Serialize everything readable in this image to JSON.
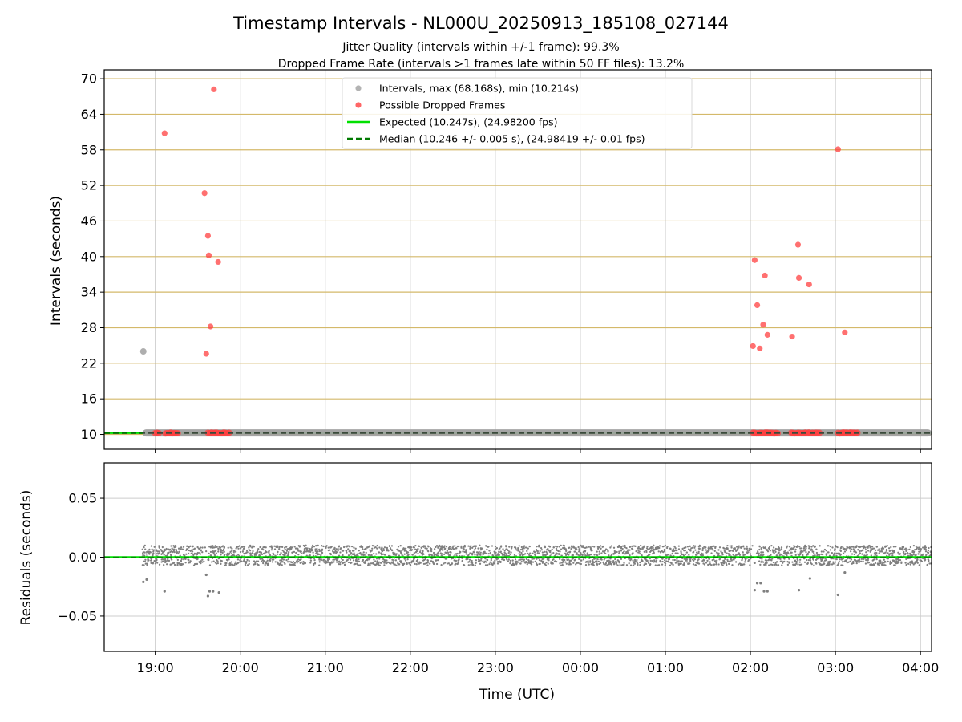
{
  "chart_data": {
    "type": "scatter",
    "title": "Timestamp Intervals - NL000U_20250913_185108_027144",
    "subtitles": [
      "Jitter Quality (intervals within +/-1 frame): 99.3%",
      "Dropped Frame Rate (intervals >1 frames late within 50 FF files): 13.2%"
    ],
    "xlabel": "Time (UTC)",
    "x_tick_labels": [
      "19:00",
      "20:00",
      "21:00",
      "22:00",
      "23:00",
      "00:00",
      "01:00",
      "02:00",
      "03:00",
      "04:00"
    ],
    "x_ticks": [
      19.0,
      20.0,
      21.0,
      22.0,
      23.0,
      24.0,
      25.0,
      26.0,
      27.0,
      28.0
    ],
    "xlim": [
      18.4,
      28.13
    ],
    "legend_position": "upper-center",
    "colors": {
      "intervals": "#a0a0a0",
      "dropped": "#ff4040",
      "expected": "#00e000",
      "median": "#007a00",
      "residuals": "#7f7f7f",
      "hgrid_top": "#d4b96a",
      "grid": "#cccccc"
    },
    "top": {
      "ylabel": "Intervals (seconds)",
      "ylim": [
        7.5,
        71.5
      ],
      "y_ticks": [
        10,
        16,
        22,
        28,
        34,
        40,
        46,
        52,
        58,
        64,
        70
      ],
      "legend": [
        {
          "label": "Intervals, max (68.168s), min (10.214s)",
          "kind": "dot",
          "color": "#a0a0a0"
        },
        {
          "label": "Possible Dropped Frames",
          "kind": "dot",
          "color": "#ff4040"
        },
        {
          "label": "Expected (10.247s), (24.98200 fps)",
          "kind": "line",
          "color": "#00e000"
        },
        {
          "label": "Median (10.246 +/- 0.005 s), (24.98419 +/- 0.01 fps)",
          "kind": "dash",
          "color": "#007a00"
        }
      ],
      "expected_value": 10.247,
      "median_value": 10.246,
      "intervals_outliers": [
        {
          "x": 18.86,
          "y": 24.0
        }
      ],
      "dropped_frames": [
        {
          "x": 19.11,
          "y": 60.8
        },
        {
          "x": 19.69,
          "y": 68.2
        },
        {
          "x": 19.58,
          "y": 50.7
        },
        {
          "x": 19.62,
          "y": 43.5
        },
        {
          "x": 19.63,
          "y": 40.2
        },
        {
          "x": 19.74,
          "y": 39.1
        },
        {
          "x": 19.65,
          "y": 28.2
        },
        {
          "x": 19.6,
          "y": 23.6
        },
        {
          "x": 27.03,
          "y": 58.1
        },
        {
          "x": 26.56,
          "y": 42.0
        },
        {
          "x": 26.05,
          "y": 39.4
        },
        {
          "x": 26.17,
          "y": 36.8
        },
        {
          "x": 26.57,
          "y": 36.4
        },
        {
          "x": 26.69,
          "y": 35.3
        },
        {
          "x": 26.08,
          "y": 31.8
        },
        {
          "x": 26.15,
          "y": 28.5
        },
        {
          "x": 26.2,
          "y": 26.8
        },
        {
          "x": 26.49,
          "y": 26.5
        },
        {
          "x": 27.11,
          "y": 27.2
        },
        {
          "x": 26.03,
          "y": 24.9
        },
        {
          "x": 26.11,
          "y": 24.5
        }
      ],
      "baseline_span": [
        18.85,
        28.13
      ],
      "baseline_value": 10.25,
      "dropped_baseline_ranges": [
        [
          19.0,
          19.05
        ],
        [
          19.12,
          19.27
        ],
        [
          19.62,
          19.88
        ],
        [
          26.03,
          26.33
        ],
        [
          26.48,
          26.82
        ],
        [
          27.03,
          27.27
        ]
      ]
    },
    "bottom": {
      "ylabel": "Residuals (seconds)",
      "ylim": [
        -0.08,
        0.08
      ],
      "y_ticks": [
        0.05,
        0.0,
        -0.05
      ],
      "y_tick_labels": [
        "0.05",
        "0.00",
        "−0.05"
      ],
      "band_range": [
        -0.007,
        0.01
      ],
      "band_span": [
        18.85,
        28.13
      ],
      "gaps": [
        [
          19.55,
          19.62
        ],
        [
          26.0,
          26.08
        ]
      ],
      "outliers": [
        {
          "x": 18.86,
          "y": -0.021
        },
        {
          "x": 18.9,
          "y": -0.019
        },
        {
          "x": 19.11,
          "y": -0.029
        },
        {
          "x": 19.6,
          "y": -0.015
        },
        {
          "x": 19.62,
          "y": -0.033
        },
        {
          "x": 19.64,
          "y": -0.029
        },
        {
          "x": 19.68,
          "y": -0.029
        },
        {
          "x": 19.75,
          "y": -0.03
        },
        {
          "x": 26.05,
          "y": -0.028
        },
        {
          "x": 26.08,
          "y": -0.022
        },
        {
          "x": 26.12,
          "y": -0.022
        },
        {
          "x": 26.16,
          "y": -0.029
        },
        {
          "x": 26.2,
          "y": -0.029
        },
        {
          "x": 26.57,
          "y": -0.028
        },
        {
          "x": 26.7,
          "y": -0.018
        },
        {
          "x": 27.03,
          "y": -0.032
        },
        {
          "x": 27.11,
          "y": -0.013
        }
      ]
    }
  }
}
